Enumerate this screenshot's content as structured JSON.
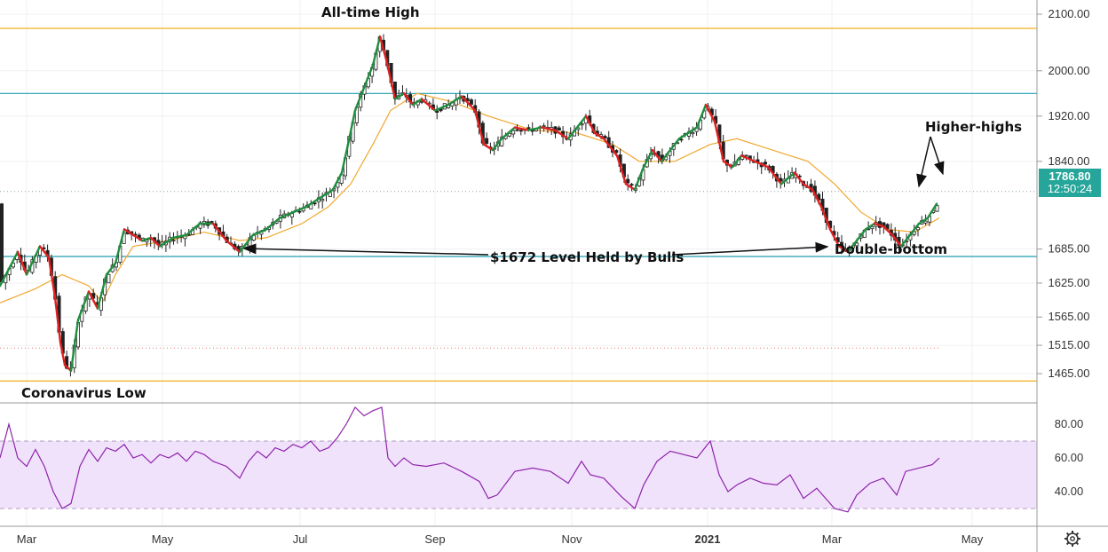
{
  "chart_data": {
    "type": "candlestick",
    "ylim": [
      1440,
      2120
    ],
    "y_ticks": [
      "2100.00",
      "2000.00",
      "1920.00",
      "1840.00",
      "1685.00",
      "1625.00",
      "1565.00",
      "1515.00",
      "1465.00"
    ],
    "x_ticks": [
      "Mar",
      "May",
      "Jul",
      "Sep",
      "Nov",
      "2021",
      "Mar",
      "May"
    ],
    "price_label": "1786.80",
    "time_label": "12:50:24",
    "horizontal_levels": [
      {
        "value": 2075,
        "color": "#f0a800"
      },
      {
        "value": 1960,
        "color": "#1e9fb0"
      },
      {
        "value": 1672,
        "color": "#1e9fb0"
      },
      {
        "value": 1452,
        "color": "#f0a800"
      }
    ],
    "annotations": [
      {
        "text": "All-time High"
      },
      {
        "text": "Coronavirus Low"
      },
      {
        "text": "$1672 Level Held by Bulls"
      },
      {
        "text": "Double-bottom"
      },
      {
        "text": "Higher-highs"
      }
    ],
    "price_path": [
      [
        0,
        1620
      ],
      [
        10,
        1650
      ],
      [
        20,
        1680
      ],
      [
        30,
        1640
      ],
      [
        45,
        1690
      ],
      [
        55,
        1670
      ],
      [
        62,
        1600
      ],
      [
        68,
        1520
      ],
      [
        73,
        1480
      ],
      [
        80,
        1470
      ],
      [
        88,
        1560
      ],
      [
        100,
        1610
      ],
      [
        110,
        1580
      ],
      [
        120,
        1640
      ],
      [
        130,
        1660
      ],
      [
        140,
        1720
      ],
      [
        150,
        1710
      ],
      [
        160,
        1700
      ],
      [
        170,
        1705
      ],
      [
        180,
        1690
      ],
      [
        195,
        1705
      ],
      [
        210,
        1710
      ],
      [
        225,
        1730
      ],
      [
        240,
        1730
      ],
      [
        255,
        1700
      ],
      [
        270,
        1680
      ],
      [
        285,
        1710
      ],
      [
        300,
        1720
      ],
      [
        315,
        1740
      ],
      [
        330,
        1750
      ],
      [
        345,
        1760
      ],
      [
        360,
        1775
      ],
      [
        375,
        1790
      ],
      [
        385,
        1820
      ],
      [
        392,
        1870
      ],
      [
        400,
        1930
      ],
      [
        410,
        1970
      ],
      [
        420,
        2010
      ],
      [
        428,
        2060
      ],
      [
        435,
        2020
      ],
      [
        445,
        1950
      ],
      [
        455,
        1960
      ],
      [
        465,
        1940
      ],
      [
        475,
        1950
      ],
      [
        490,
        1930
      ],
      [
        505,
        1940
      ],
      [
        520,
        1955
      ],
      [
        535,
        1930
      ],
      [
        545,
        1870
      ],
      [
        555,
        1860
      ],
      [
        565,
        1880
      ],
      [
        580,
        1900
      ],
      [
        595,
        1895
      ],
      [
        610,
        1900
      ],
      [
        625,
        1895
      ],
      [
        640,
        1880
      ],
      [
        650,
        1900
      ],
      [
        660,
        1920
      ],
      [
        670,
        1890
      ],
      [
        680,
        1880
      ],
      [
        695,
        1850
      ],
      [
        705,
        1800
      ],
      [
        715,
        1790
      ],
      [
        725,
        1830
      ],
      [
        735,
        1860
      ],
      [
        745,
        1840
      ],
      [
        755,
        1860
      ],
      [
        765,
        1880
      ],
      [
        775,
        1890
      ],
      [
        785,
        1900
      ],
      [
        795,
        1940
      ],
      [
        805,
        1910
      ],
      [
        815,
        1840
      ],
      [
        825,
        1830
      ],
      [
        835,
        1850
      ],
      [
        850,
        1840
      ],
      [
        865,
        1830
      ],
      [
        880,
        1800
      ],
      [
        895,
        1820
      ],
      [
        905,
        1800
      ],
      [
        915,
        1790
      ],
      [
        925,
        1760
      ],
      [
        935,
        1720
      ],
      [
        945,
        1690
      ],
      [
        955,
        1680
      ],
      [
        965,
        1700
      ],
      [
        975,
        1720
      ],
      [
        985,
        1730
      ],
      [
        995,
        1725
      ],
      [
        1005,
        1710
      ],
      [
        1015,
        1690
      ],
      [
        1025,
        1710
      ],
      [
        1035,
        1730
      ],
      [
        1045,
        1740
      ],
      [
        1055,
        1765
      ]
    ],
    "ma_path": [
      [
        0,
        1590
      ],
      [
        40,
        1615
      ],
      [
        70,
        1640
      ],
      [
        100,
        1620
      ],
      [
        115,
        1590
      ],
      [
        130,
        1640
      ],
      [
        150,
        1690
      ],
      [
        190,
        1700
      ],
      [
        230,
        1715
      ],
      [
        270,
        1700
      ],
      [
        300,
        1705
      ],
      [
        340,
        1730
      ],
      [
        370,
        1760
      ],
      [
        395,
        1800
      ],
      [
        420,
        1870
      ],
      [
        440,
        1930
      ],
      [
        470,
        1960
      ],
      [
        510,
        1945
      ],
      [
        550,
        1920
      ],
      [
        600,
        1895
      ],
      [
        650,
        1890
      ],
      [
        690,
        1870
      ],
      [
        720,
        1840
      ],
      [
        760,
        1840
      ],
      [
        800,
        1870
      ],
      [
        830,
        1880
      ],
      [
        870,
        1860
      ],
      [
        910,
        1840
      ],
      [
        940,
        1800
      ],
      [
        970,
        1750
      ],
      [
        1000,
        1720
      ],
      [
        1030,
        1715
      ],
      [
        1058,
        1740
      ]
    ],
    "rsi": {
      "ylim": [
        20,
        95
      ],
      "y_ticks": [
        "80.00",
        "60.00",
        "40.00"
      ],
      "band": [
        30,
        70
      ],
      "path": [
        [
          0,
          60
        ],
        [
          10,
          80
        ],
        [
          20,
          60
        ],
        [
          30,
          55
        ],
        [
          40,
          65
        ],
        [
          50,
          55
        ],
        [
          60,
          40
        ],
        [
          70,
          30
        ],
        [
          80,
          33
        ],
        [
          90,
          55
        ],
        [
          100,
          65
        ],
        [
          110,
          58
        ],
        [
          120,
          66
        ],
        [
          130,
          64
        ],
        [
          140,
          68
        ],
        [
          150,
          60
        ],
        [
          160,
          62
        ],
        [
          170,
          57
        ],
        [
          180,
          62
        ],
        [
          190,
          60
        ],
        [
          200,
          63
        ],
        [
          210,
          58
        ],
        [
          220,
          64
        ],
        [
          230,
          62
        ],
        [
          240,
          58
        ],
        [
          255,
          55
        ],
        [
          270,
          48
        ],
        [
          280,
          58
        ],
        [
          290,
          64
        ],
        [
          300,
          60
        ],
        [
          310,
          66
        ],
        [
          320,
          64
        ],
        [
          330,
          68
        ],
        [
          340,
          66
        ],
        [
          350,
          70
        ],
        [
          360,
          64
        ],
        [
          370,
          66
        ],
        [
          380,
          72
        ],
        [
          390,
          80
        ],
        [
          400,
          90
        ],
        [
          410,
          85
        ],
        [
          420,
          88
        ],
        [
          430,
          90
        ],
        [
          437,
          60
        ],
        [
          445,
          55
        ],
        [
          455,
          60
        ],
        [
          465,
          56
        ],
        [
          480,
          55
        ],
        [
          500,
          57
        ],
        [
          520,
          52
        ],
        [
          540,
          46
        ],
        [
          550,
          36
        ],
        [
          560,
          38
        ],
        [
          570,
          45
        ],
        [
          580,
          52
        ],
        [
          600,
          54
        ],
        [
          620,
          52
        ],
        [
          640,
          45
        ],
        [
          655,
          58
        ],
        [
          665,
          50
        ],
        [
          680,
          48
        ],
        [
          700,
          37
        ],
        [
          715,
          30
        ],
        [
          725,
          44
        ],
        [
          740,
          58
        ],
        [
          755,
          64
        ],
        [
          770,
          62
        ],
        [
          785,
          60
        ],
        [
          800,
          70
        ],
        [
          810,
          50
        ],
        [
          820,
          40
        ],
        [
          830,
          44
        ],
        [
          845,
          48
        ],
        [
          860,
          45
        ],
        [
          875,
          44
        ],
        [
          890,
          50
        ],
        [
          905,
          36
        ],
        [
          920,
          42
        ],
        [
          930,
          36
        ],
        [
          940,
          30
        ],
        [
          955,
          28
        ],
        [
          965,
          38
        ],
        [
          980,
          45
        ],
        [
          995,
          48
        ],
        [
          1010,
          38
        ],
        [
          1020,
          52
        ],
        [
          1035,
          54
        ],
        [
          1050,
          56
        ],
        [
          1058,
          60
        ]
      ]
    }
  }
}
